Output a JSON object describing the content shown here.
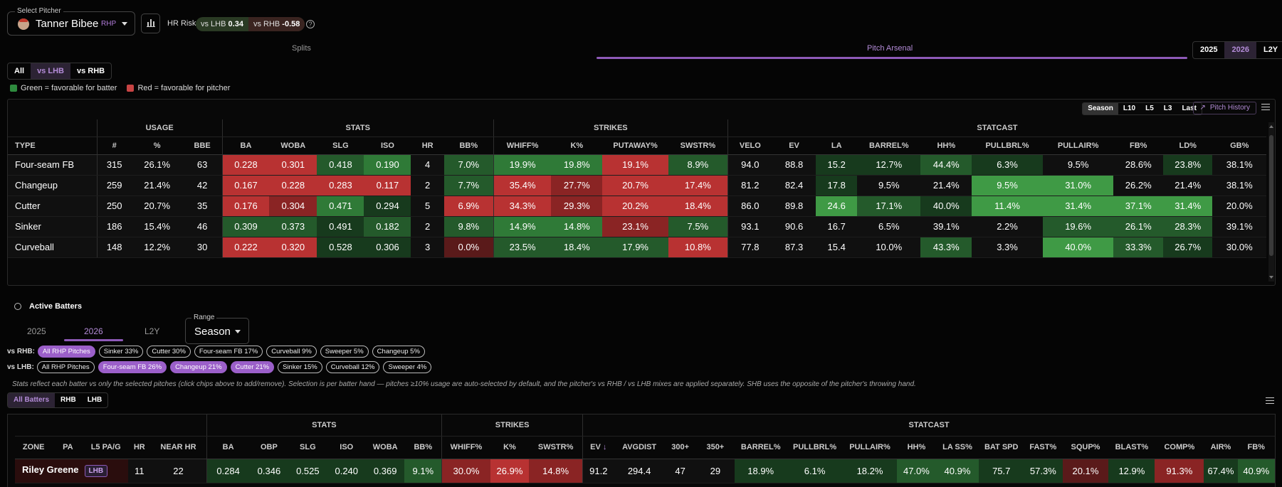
{
  "pitcher": {
    "label": "Select Pitcher",
    "name": "Tanner Bibee",
    "hand": "RHP"
  },
  "hr_risk": {
    "label": "HR Risk",
    "lhb_label": "vs LHB",
    "lhb_val": "0.34",
    "rhb_label": "vs RHB",
    "rhb_val": "-0.58"
  },
  "tabs": {
    "splits": "Splits",
    "arsenal": "Pitch Arsenal",
    "active": "arsenal"
  },
  "years": [
    "2025",
    "2026",
    "L2Y"
  ],
  "year_active": "2026",
  "hand_filter": [
    "All",
    "vs LHB",
    "vs RHB"
  ],
  "hand_active": "vs LHB",
  "legend": {
    "green": "Green = favorable for batter",
    "red": "Red = favorable for pitcher",
    "green_color": "#2e8b3e",
    "red_color": "#c84444"
  },
  "periods": [
    "Season",
    "L10",
    "L5",
    "L3",
    "Last"
  ],
  "period_active": "Season",
  "pitch_history_label": "Pitch History",
  "arsenal": {
    "groups": [
      {
        "label": "",
        "span": 1
      },
      {
        "label": "USAGE",
        "span": 3
      },
      {
        "label": "STATS",
        "span": 6
      },
      {
        "label": "STRIKES",
        "span": 4
      },
      {
        "label": "STATCAST",
        "span": 10
      }
    ],
    "columns": [
      "TYPE",
      "#",
      "%",
      "BBE",
      "BA",
      "WOBA",
      "SLG",
      "ISO",
      "HR",
      "BB%",
      "WHIFF%",
      "K%",
      "PUTAWAY%",
      "SWSTR%",
      "VELO",
      "EV",
      "LA",
      "BARREL%",
      "HH%",
      "PULLBRL%",
      "PULLAIR%",
      "FB%",
      "LD%",
      "GB%"
    ],
    "rows": [
      [
        "Four-seam FB",
        "315",
        "26.1%",
        "63",
        "0.228",
        "0.301",
        "0.418",
        "0.190",
        "4",
        "7.0%",
        "19.9%",
        "19.8%",
        "19.1%",
        "8.9%",
        "94.0",
        "88.8",
        "15.2",
        "12.7%",
        "44.4%",
        "6.3%",
        "9.5%",
        "28.6%",
        "23.8%",
        "38.1%"
      ],
      [
        "Changeup",
        "259",
        "21.4%",
        "42",
        "0.167",
        "0.228",
        "0.283",
        "0.117",
        "2",
        "7.7%",
        "35.4%",
        "27.7%",
        "20.7%",
        "17.4%",
        "81.2",
        "82.4",
        "17.8",
        "9.5%",
        "21.4%",
        "9.5%",
        "31.0%",
        "26.2%",
        "21.4%",
        "38.1%"
      ],
      [
        "Cutter",
        "250",
        "20.7%",
        "35",
        "0.176",
        "0.304",
        "0.471",
        "0.294",
        "5",
        "6.9%",
        "34.3%",
        "29.3%",
        "20.2%",
        "18.4%",
        "86.0",
        "89.8",
        "24.6",
        "17.1%",
        "40.0%",
        "11.4%",
        "31.4%",
        "37.1%",
        "31.4%",
        "20.0%"
      ],
      [
        "Sinker",
        "186",
        "15.4%",
        "46",
        "0.309",
        "0.373",
        "0.491",
        "0.182",
        "2",
        "9.8%",
        "14.9%",
        "14.8%",
        "23.1%",
        "7.5%",
        "93.1",
        "90.6",
        "16.7",
        "6.5%",
        "39.1%",
        "2.2%",
        "19.6%",
        "26.1%",
        "28.3%",
        "39.1%"
      ],
      [
        "Curveball",
        "148",
        "12.2%",
        "30",
        "0.222",
        "0.320",
        "0.528",
        "0.306",
        "3",
        "0.0%",
        "23.5%",
        "18.4%",
        "17.9%",
        "10.8%",
        "77.8",
        "87.3",
        "15.4",
        "10.0%",
        "43.3%",
        "3.3%",
        "40.0%",
        "33.3%",
        "26.7%",
        "30.0%"
      ]
    ]
  },
  "active_batters": {
    "title": "Active Batters",
    "years": [
      "2025",
      "2026",
      "L2Y"
    ],
    "year_active": "2026",
    "range_label": "Range",
    "range_value": "Season",
    "vs_rhb_label": "vs RHB:",
    "vs_lhb_label": "vs LHB:",
    "rhb_chips": [
      {
        "t": "All RHP Pitches",
        "on": true
      },
      {
        "t": "Sinker 33%",
        "on": false
      },
      {
        "t": "Cutter 30%",
        "on": false
      },
      {
        "t": "Four-seam FB 17%",
        "on": false
      },
      {
        "t": "Curveball 9%",
        "on": false
      },
      {
        "t": "Sweeper 5%",
        "on": false
      },
      {
        "t": "Changeup 5%",
        "on": false
      }
    ],
    "lhb_chips": [
      {
        "t": "All RHP Pitches",
        "on": false
      },
      {
        "t": "Four-seam FB 26%",
        "on": true
      },
      {
        "t": "Changeup 21%",
        "on": true
      },
      {
        "t": "Cutter 21%",
        "on": true
      },
      {
        "t": "Sinker 15%",
        "on": false
      },
      {
        "t": "Curveball 12%",
        "on": false
      },
      {
        "t": "Sweeper 4%",
        "on": false
      }
    ],
    "note": "Stats reflect each batter vs only the selected pitches (click chips above to add/remove). Selection is per batter hand — pitches ≥10% usage are auto-selected by default, and the pitcher's vs RHB / vs LHB mixes are applied separately. SHB uses the opposite of the pitcher's throwing hand.",
    "batter_filter": [
      "All Batters",
      "RHB",
      "LHB"
    ],
    "batter_filter_active": "All Batters",
    "groups": [
      {
        "label": "",
        "span": 5
      },
      {
        "label": "STATS",
        "span": 6
      },
      {
        "label": "STRIKES",
        "span": 3
      },
      {
        "label": "STATCAST",
        "span": 16
      }
    ],
    "columns": [
      "ZONE",
      "PA",
      "L5 PA/G",
      "HR",
      "NEAR HR",
      "BA",
      "OBP",
      "SLG",
      "ISO",
      "WOBA",
      "BB%",
      "WHIFF%",
      "K%",
      "SWSTR%",
      "EV",
      "AVGDIST",
      "300+",
      "350+",
      "BARREL%",
      "PULLBRL%",
      "PULLAIR%",
      "HH%",
      "LA SS%",
      "BAT SPD",
      "FAST%",
      "SQUP%",
      "BLAST%",
      "COMP%",
      "AIR%",
      "FB%"
    ],
    "sort_column": "EV",
    "rows": [
      {
        "name": "Riley Greene",
        "hand": "LHB",
        "cells": [
          "",
          "",
          "",
          "11",
          "22",
          "0.284",
          "0.346",
          "0.525",
          "0.240",
          "0.369",
          "9.1%",
          "30.0%",
          "26.9%",
          "14.8%",
          "91.2",
          "294.4",
          "47",
          "29",
          "18.9%",
          "6.1%",
          "18.2%",
          "47.0%",
          "40.9%",
          "75.7",
          "57.3%",
          "20.1%",
          "12.9%",
          "91.3%",
          "67.4%",
          "40.9%"
        ]
      }
    ]
  }
}
